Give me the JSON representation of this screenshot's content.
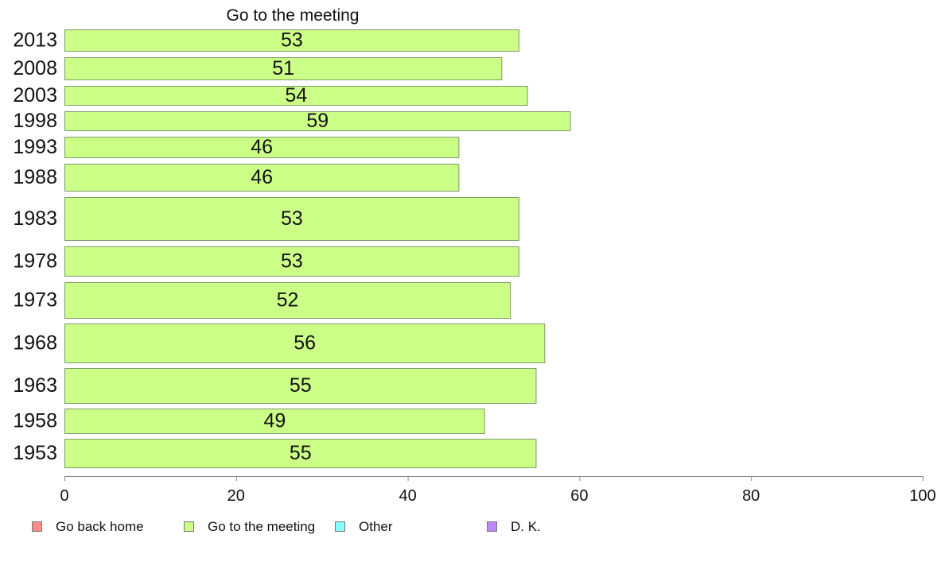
{
  "chart_data": {
    "type": "bar",
    "orientation": "horizontal",
    "title": "Go to the meeting",
    "categories": [
      "2013",
      "2008",
      "2003",
      "1998",
      "1993",
      "1988",
      "1983",
      "1978",
      "1973",
      "1968",
      "1963",
      "1958",
      "1953"
    ],
    "series": [
      {
        "name": "Go to the meeting",
        "color": "#ccff88",
        "values": [
          53,
          51,
          54,
          59,
          46,
          46,
          53,
          53,
          52,
          56,
          55,
          49,
          55
        ],
        "value_labels": [
          "53",
          "51",
          "54",
          "59",
          "46",
          "46",
          "53",
          "53",
          "52",
          "56",
          "55",
          "49",
          "55"
        ]
      }
    ],
    "xlim": [
      0,
      100
    ],
    "xticks": [
      "0",
      "20",
      "40",
      "60",
      "80",
      "100"
    ],
    "xtick_values": [
      0,
      20,
      40,
      60,
      80,
      100
    ],
    "grid": false,
    "legend": {
      "placement": "bottom-left",
      "items": [
        {
          "label": "Go back home",
          "color": "#ff8a8a"
        },
        {
          "label": "Go to the meeting",
          "color": "#ccff88"
        },
        {
          "label": "Other",
          "color": "#88ffff"
        },
        {
          "label": "D. K.",
          "color": "#bb88ff"
        }
      ]
    }
  }
}
